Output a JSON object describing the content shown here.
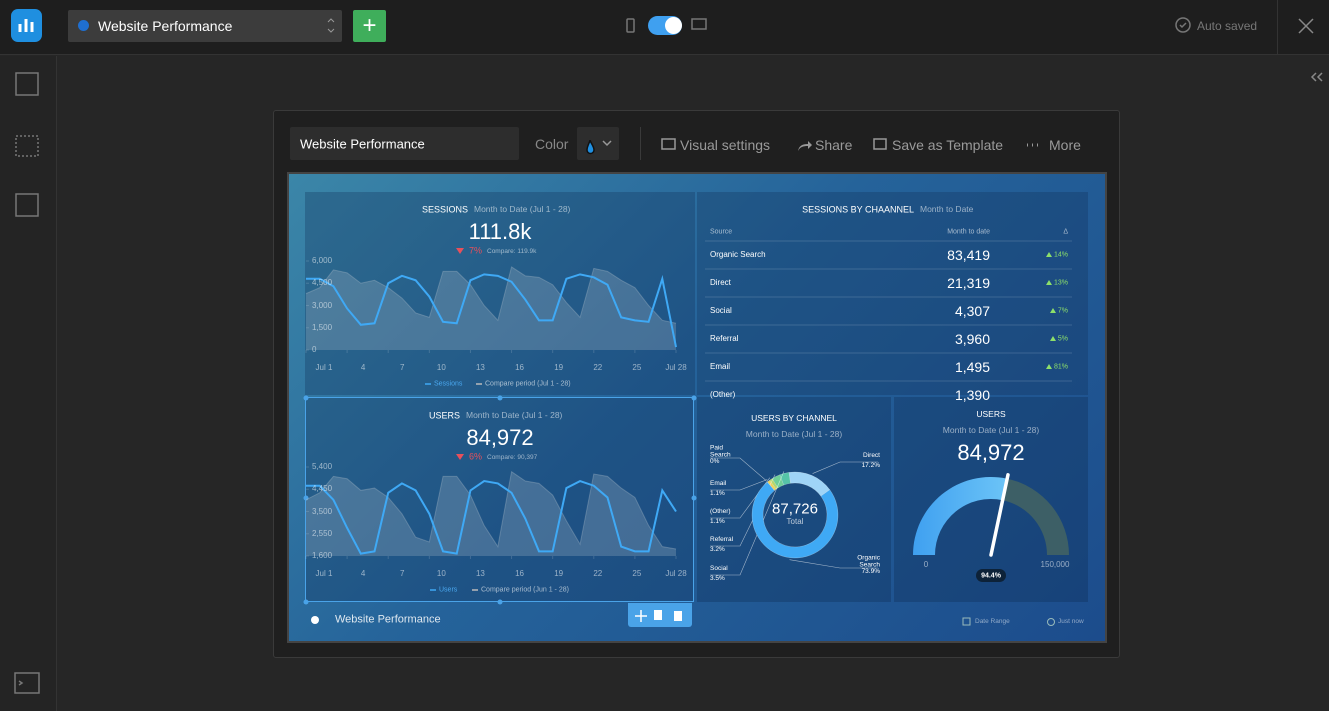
{
  "topbar": {
    "title": "Website Performance",
    "status": "Auto saved"
  },
  "toolbar": {
    "name": "Website Performance",
    "color_label": "Color",
    "actions": [
      "Visual settings",
      "Share",
      "Save as Template",
      "More"
    ]
  },
  "sessions": {
    "title": "SESSIONS",
    "period": "Month to Date (Jul 1 - 28)",
    "value": "111.8k",
    "change": "7%",
    "compare": "Compare: 119.9k",
    "chart": {
      "type": "line",
      "x": [
        1,
        2,
        3,
        4,
        5,
        6,
        7,
        8,
        9,
        10,
        11,
        12,
        13,
        14,
        15,
        16,
        17,
        18,
        19,
        20,
        21,
        22,
        23,
        24,
        25,
        26,
        27,
        28
      ],
      "xlim": [
        1,
        28
      ],
      "xticks": [
        {
          "value": 1,
          "label": "Jul 1"
        },
        4,
        7,
        10,
        13,
        16,
        19,
        22,
        25,
        {
          "value": 28,
          "label": "Jul 28"
        }
      ],
      "ylim": [
        0,
        6000
      ],
      "yticks": [
        0,
        {
          "value": 1500,
          "label": "1,500"
        },
        {
          "value": 3000,
          "label": "3,000"
        },
        {
          "value": 4500,
          "label": "4,500"
        },
        {
          "value": 6000,
          "label": "6,000"
        }
      ],
      "series": [
        {
          "name": "Sessions",
          "color": "#3fa9f5",
          "values": [
            4800,
            4800,
            4300,
            2800,
            1700,
            1800,
            4500,
            5000,
            4700,
            3600,
            1900,
            1800,
            4700,
            5100,
            5000,
            4600,
            3400,
            2000,
            2000,
            4800,
            5100,
            4900,
            4400,
            2200,
            2000,
            1900,
            4800,
            200
          ]
        },
        {
          "name": "Compare period (Jul 1 - 28)",
          "color": "#9aa6b4",
          "values": [
            3800,
            4200,
            5400,
            5200,
            4500,
            4700,
            4200,
            3500,
            2500,
            2200,
            5300,
            5300,
            4400,
            3000,
            2000,
            5600,
            5000,
            4900,
            4400,
            3200,
            2200,
            5500,
            5300,
            4700,
            4200,
            3000,
            2000,
            1800
          ]
        }
      ]
    }
  },
  "users": {
    "title": "USERS",
    "period": "Month to Date (Jul 1 - 28)",
    "value": "84,972",
    "change": "6%",
    "compare": "Compare: 90,397",
    "chart": {
      "type": "line",
      "x": [
        1,
        2,
        3,
        4,
        5,
        6,
        7,
        8,
        9,
        10,
        11,
        12,
        13,
        14,
        15,
        16,
        17,
        18,
        19,
        20,
        21,
        22,
        23,
        24,
        25,
        26,
        27,
        28
      ],
      "xlim": [
        1,
        28
      ],
      "xticks": [
        {
          "value": 1,
          "label": "Jul 1"
        },
        4,
        7,
        10,
        13,
        16,
        19,
        22,
        25,
        {
          "value": 28,
          "label": "Jul 28"
        }
      ],
      "ylim": [
        1600,
        5400
      ],
      "yticks": [
        {
          "value": 1600,
          "label": "1,600"
        },
        {
          "value": 2550,
          "label": "2,550"
        },
        {
          "value": 3500,
          "label": "3,500"
        },
        {
          "value": 4450,
          "label": "4,450"
        },
        {
          "value": 5400,
          "label": "5,400"
        }
      ],
      "series": [
        {
          "name": "Users",
          "color": "#3fa9f5",
          "values": [
            4600,
            4600,
            4000,
            2800,
            1700,
            1800,
            4300,
            4700,
            4400,
            3400,
            1800,
            1700,
            4400,
            4800,
            4700,
            4300,
            3200,
            1800,
            1800,
            4500,
            4800,
            4600,
            4100,
            2000,
            1800,
            1800,
            4400,
            3500
          ]
        },
        {
          "name": "Compare period (Jun 1 - 28)",
          "color": "#9aa6b4",
          "values": [
            4000,
            4300,
            5000,
            4900,
            4400,
            4500,
            4100,
            3400,
            2400,
            2200,
            5000,
            5000,
            4200,
            2900,
            2000,
            5200,
            4800,
            4700,
            4200,
            3100,
            2100,
            5100,
            5000,
            4500,
            4100,
            2900,
            2000,
            1900
          ]
        }
      ]
    }
  },
  "sessions_by_channel": {
    "title": "SESSIONS BY CHAANNEL",
    "period": "Month to Date",
    "columns": [
      "Source",
      "Month to date",
      "Δ"
    ],
    "rows": [
      [
        "Organic Search",
        "83,419",
        "14%"
      ],
      [
        "Direct",
        "21,319",
        "13%"
      ],
      [
        "Social",
        "4,307",
        "7%"
      ],
      [
        "Referral",
        "3,960",
        "5%"
      ],
      [
        "Email",
        "1,495",
        "81%"
      ],
      [
        "(Other)",
        "1,390"
      ]
    ]
  },
  "users_by_channel": {
    "title": "USERS BY CHANNEL",
    "period": "Month to Date (Jul 1 - 28)",
    "total_value": "87,726",
    "total_label": "Total",
    "chart": {
      "type": "pie",
      "categories": [
        "Paid Search",
        "Email",
        "(Other)",
        "Referral",
        "Social",
        "Direct",
        "Organic Search"
      ],
      "values": [
        0,
        1.1,
        1.1,
        3.2,
        3.5,
        17.2,
        73.9
      ],
      "value_labels": [
        "0%",
        "1.1%",
        "1.1%",
        "3.2%",
        "3.5%",
        "17.2%",
        "73.9%"
      ],
      "colors": [
        "#e57373",
        "#f0d25a",
        "#b5d86a",
        "#6fcf97",
        "#56c4a8",
        "#9fd4f7",
        "#3fa9f5"
      ]
    }
  },
  "users_gauge": {
    "title": "USERS",
    "period": "Month to Date (Jul 1 - 28)",
    "chart": {
      "type": "gauge",
      "value": {
        "value": 84972,
        "label": "84,972"
      },
      "min": 0,
      "max": {
        "value": 150000,
        "label": "150,000"
      },
      "percent": {
        "value": 94.4,
        "label": "94.4%"
      }
    }
  },
  "footer": {
    "title": "Website Performance",
    "date_range": "Date Range",
    "updated": "Just now"
  }
}
